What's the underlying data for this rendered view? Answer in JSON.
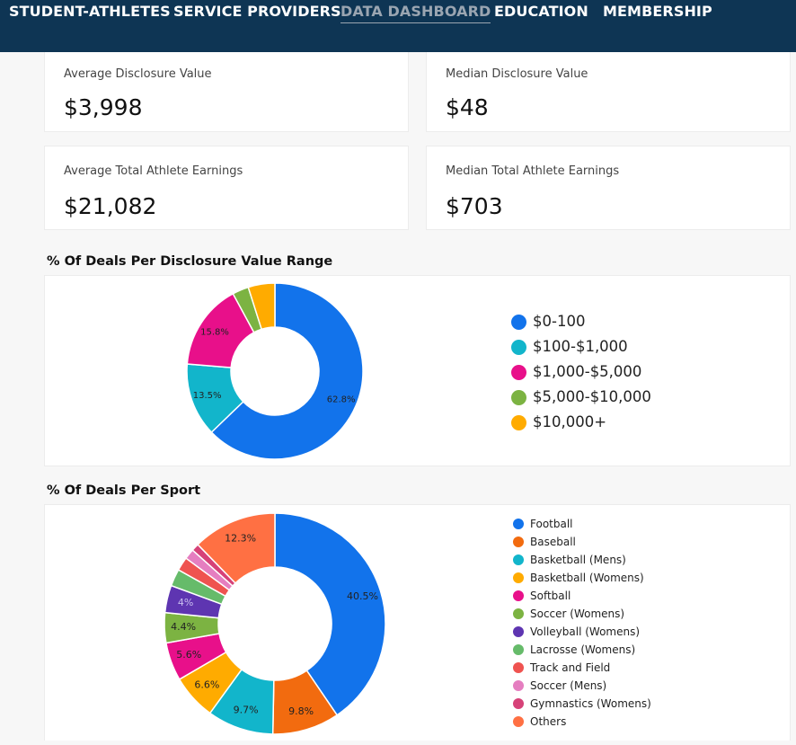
{
  "nav": {
    "items": [
      {
        "label": "STUDENT-ATHLETES",
        "active": false
      },
      {
        "label": "SERVICE PROVIDERS",
        "active": false
      },
      {
        "label": "DATA DASHBOARD",
        "active": true
      },
      {
        "label": "EDUCATION",
        "active": false
      },
      {
        "label": "MEMBERSHIP",
        "active": false
      }
    ]
  },
  "stats": {
    "avg_disclosure": {
      "label": "Average Disclosure Value",
      "value": "$3,998"
    },
    "median_disclosure": {
      "label": "Median Disclosure Value",
      "value": "$48"
    },
    "avg_earnings": {
      "label": "Average Total Athlete Earnings",
      "value": "$21,082"
    },
    "median_earnings": {
      "label": "Median Total Athlete Earnings",
      "value": "$703"
    }
  },
  "colors": {
    "nav_bg": "#0e3554",
    "blue": "#1273eb",
    "teal": "#12b5cb",
    "magenta": "#e8108a",
    "green": "#7cb342",
    "amber": "#ffab00",
    "orange": "#f26b0f",
    "purple": "#5e35b1",
    "light_green": "#66bb6a",
    "red": "#ef5350",
    "pink": "#e57ec0",
    "rose": "#d64278",
    "salmon": "#ff7043"
  },
  "chart_data": [
    {
      "type": "pie",
      "title": "% Of Deals Per Disclosure Value Range",
      "categories": [
        "$0-100",
        "$100-$1,000",
        "$1,000-$5,000",
        "$5,000-$10,000",
        "$10,000+"
      ],
      "values": [
        62.8,
        13.5,
        15.8,
        3.0,
        4.9
      ],
      "data_labels": [
        "62.8%",
        "13.5%",
        "15.8%",
        "",
        ""
      ],
      "colors": [
        "#1273eb",
        "#12b5cb",
        "#e8108a",
        "#7cb342",
        "#ffab00"
      ],
      "donut": true,
      "legend": "right"
    },
    {
      "type": "pie",
      "title": "% Of Deals Per Sport",
      "categories": [
        "Football",
        "Baseball",
        "Basketball (Mens)",
        "Basketball (Womens)",
        "Softball",
        "Soccer (Womens)",
        "Volleyball (Womens)",
        "Lacrosse (Womens)",
        "Track and Field",
        "Soccer (Mens)",
        "Gymnastics (Womens)",
        "Others"
      ],
      "values": [
        40.5,
        9.8,
        9.7,
        6.6,
        5.6,
        4.4,
        4.0,
        2.5,
        2.0,
        1.5,
        1.1,
        12.3
      ],
      "data_labels": [
        "40.5%",
        "9.8%",
        "9.7%",
        "6.6%",
        "5.6%",
        "4.4%",
        "4%",
        "",
        "",
        "",
        "",
        "12.3%"
      ],
      "colors": [
        "#1273eb",
        "#f26b0f",
        "#12b5cb",
        "#ffab00",
        "#e8108a",
        "#7cb342",
        "#5e35b1",
        "#66bb6a",
        "#ef5350",
        "#e57ec0",
        "#d64278",
        "#ff7043"
      ],
      "donut": true,
      "legend": "right"
    }
  ]
}
